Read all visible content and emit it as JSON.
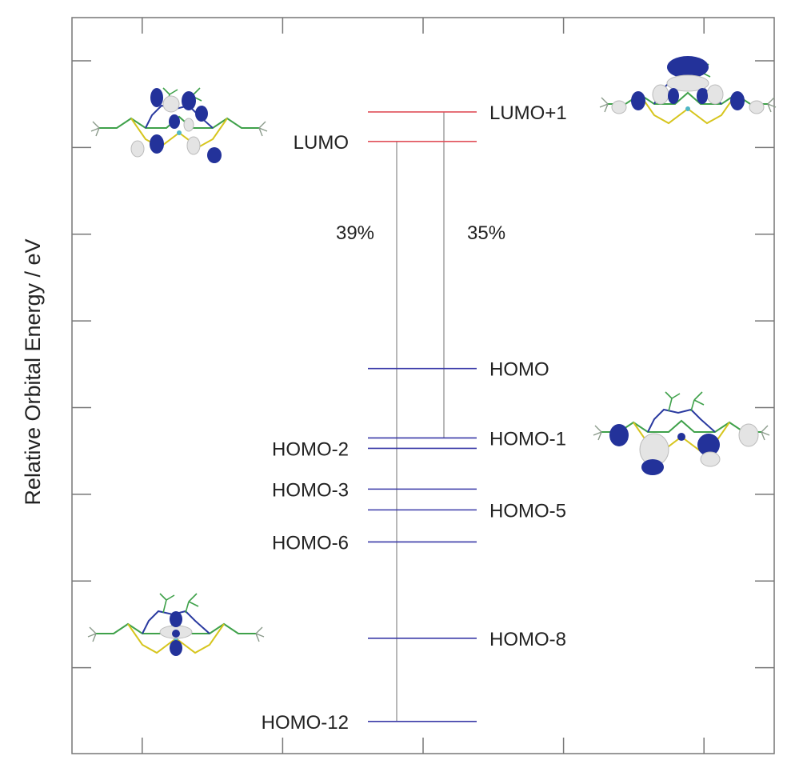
{
  "chart_data": {
    "type": "energy-level-diagram",
    "title": "",
    "ylabel": "Relative Orbital Energy / eV",
    "xlabel": "",
    "ylim": [
      0,
      8
    ],
    "grid": false,
    "levels": [
      {
        "label": "LUMO+1",
        "energy": 7.41,
        "kind": "unoccupied"
      },
      {
        "label": "LUMO",
        "energy": 7.07,
        "kind": "unoccupied"
      },
      {
        "label": "HOMO",
        "energy": 4.45,
        "kind": "occupied"
      },
      {
        "label": "HOMO-1",
        "energy": 3.65,
        "kind": "occupied"
      },
      {
        "label": "HOMO-2",
        "energy": 3.53,
        "kind": "occupied"
      },
      {
        "label": "HOMO-3",
        "energy": 3.06,
        "kind": "occupied"
      },
      {
        "label": "HOMO-5",
        "energy": 2.82,
        "kind": "occupied"
      },
      {
        "label": "HOMO-6",
        "energy": 2.45,
        "kind": "occupied"
      },
      {
        "label": "HOMO-8",
        "energy": 1.34,
        "kind": "occupied"
      },
      {
        "label": "HOMO-12",
        "energy": 0.38,
        "kind": "occupied"
      }
    ],
    "transitions": [
      {
        "from": "HOMO-12",
        "to": "LUMO",
        "label": "39%"
      },
      {
        "from": "HOMO-1",
        "to": "LUMO+1",
        "label": "35%"
      }
    ],
    "orbital_images": [
      "LUMO",
      "LUMO+1",
      "HOMO-1",
      "HOMO-12"
    ],
    "colors": {
      "unoccupied": "#e0505a",
      "occupied": "#3a3aa8",
      "transition": "#999999",
      "frame": "#777777",
      "isosurface_positive": "#23329a",
      "isosurface_negative": "#e4e4e4"
    }
  }
}
